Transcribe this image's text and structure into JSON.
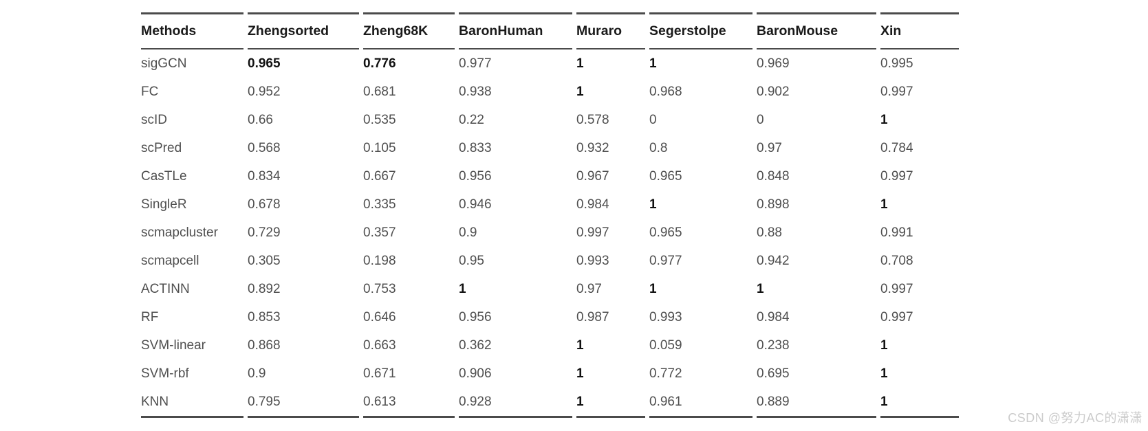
{
  "colors": {
    "background": "#ffffff",
    "rule": "#4b4b4b",
    "body_text": "#4f4f4f",
    "bold_text": "#111111",
    "header_text": "#1a1a1a",
    "watermark_text": "#cbcbcb"
  },
  "watermark": {
    "text": "CSDN @努力AC的潇潇"
  },
  "table": {
    "columns": [
      "Methods",
      "Zhengsorted",
      "Zheng68K",
      "BaronHuman",
      "Muraro",
      "Segerstolpe",
      "BaronMouse",
      "Xin"
    ],
    "rows": [
      {
        "method": "sigGCN",
        "values": [
          "0.965",
          "0.776",
          "0.977",
          "1",
          "1",
          "0.969",
          "0.995"
        ],
        "bold": [
          true,
          true,
          false,
          true,
          true,
          false,
          false
        ]
      },
      {
        "method": "FC",
        "values": [
          "0.952",
          "0.681",
          "0.938",
          "1",
          "0.968",
          "0.902",
          "0.997"
        ],
        "bold": [
          false,
          false,
          false,
          true,
          false,
          false,
          false
        ]
      },
      {
        "method": "scID",
        "values": [
          "0.66",
          "0.535",
          "0.22",
          "0.578",
          "0",
          "0",
          "1"
        ],
        "bold": [
          false,
          false,
          false,
          false,
          false,
          false,
          true
        ]
      },
      {
        "method": "scPred",
        "values": [
          "0.568",
          "0.105",
          "0.833",
          "0.932",
          "0.8",
          "0.97",
          "0.784"
        ],
        "bold": [
          false,
          false,
          false,
          false,
          false,
          false,
          false
        ]
      },
      {
        "method": "CasTLe",
        "values": [
          "0.834",
          "0.667",
          "0.956",
          "0.967",
          "0.965",
          "0.848",
          "0.997"
        ],
        "bold": [
          false,
          false,
          false,
          false,
          false,
          false,
          false
        ]
      },
      {
        "method": "SingleR",
        "values": [
          "0.678",
          "0.335",
          "0.946",
          "0.984",
          "1",
          "0.898",
          "1"
        ],
        "bold": [
          false,
          false,
          false,
          false,
          true,
          false,
          true
        ]
      },
      {
        "method": "scmapcluster",
        "values": [
          "0.729",
          "0.357",
          "0.9",
          "0.997",
          "0.965",
          "0.88",
          "0.991"
        ],
        "bold": [
          false,
          false,
          false,
          false,
          false,
          false,
          false
        ]
      },
      {
        "method": "scmapcell",
        "values": [
          "0.305",
          "0.198",
          "0.95",
          "0.993",
          "0.977",
          "0.942",
          "0.708"
        ],
        "bold": [
          false,
          false,
          false,
          false,
          false,
          false,
          false
        ]
      },
      {
        "method": "ACTINN",
        "values": [
          "0.892",
          "0.753",
          "1",
          "0.97",
          "1",
          "1",
          "0.997"
        ],
        "bold": [
          false,
          false,
          true,
          false,
          true,
          true,
          false
        ]
      },
      {
        "method": "RF",
        "values": [
          "0.853",
          "0.646",
          "0.956",
          "0.987",
          "0.993",
          "0.984",
          "0.997"
        ],
        "bold": [
          false,
          false,
          false,
          false,
          false,
          false,
          false
        ]
      },
      {
        "method": "SVM-linear",
        "values": [
          "0.868",
          "0.663",
          "0.362",
          "1",
          "0.059",
          "0.238",
          "1"
        ],
        "bold": [
          false,
          false,
          false,
          true,
          false,
          false,
          true
        ]
      },
      {
        "method": "SVM-rbf",
        "values": [
          "0.9",
          "0.671",
          "0.906",
          "1",
          "0.772",
          "0.695",
          "1"
        ],
        "bold": [
          false,
          false,
          false,
          true,
          false,
          false,
          true
        ]
      },
      {
        "method": "KNN",
        "values": [
          "0.795",
          "0.613",
          "0.928",
          "1",
          "0.961",
          "0.889",
          "1"
        ],
        "bold": [
          false,
          false,
          false,
          true,
          false,
          false,
          true
        ]
      }
    ]
  }
}
